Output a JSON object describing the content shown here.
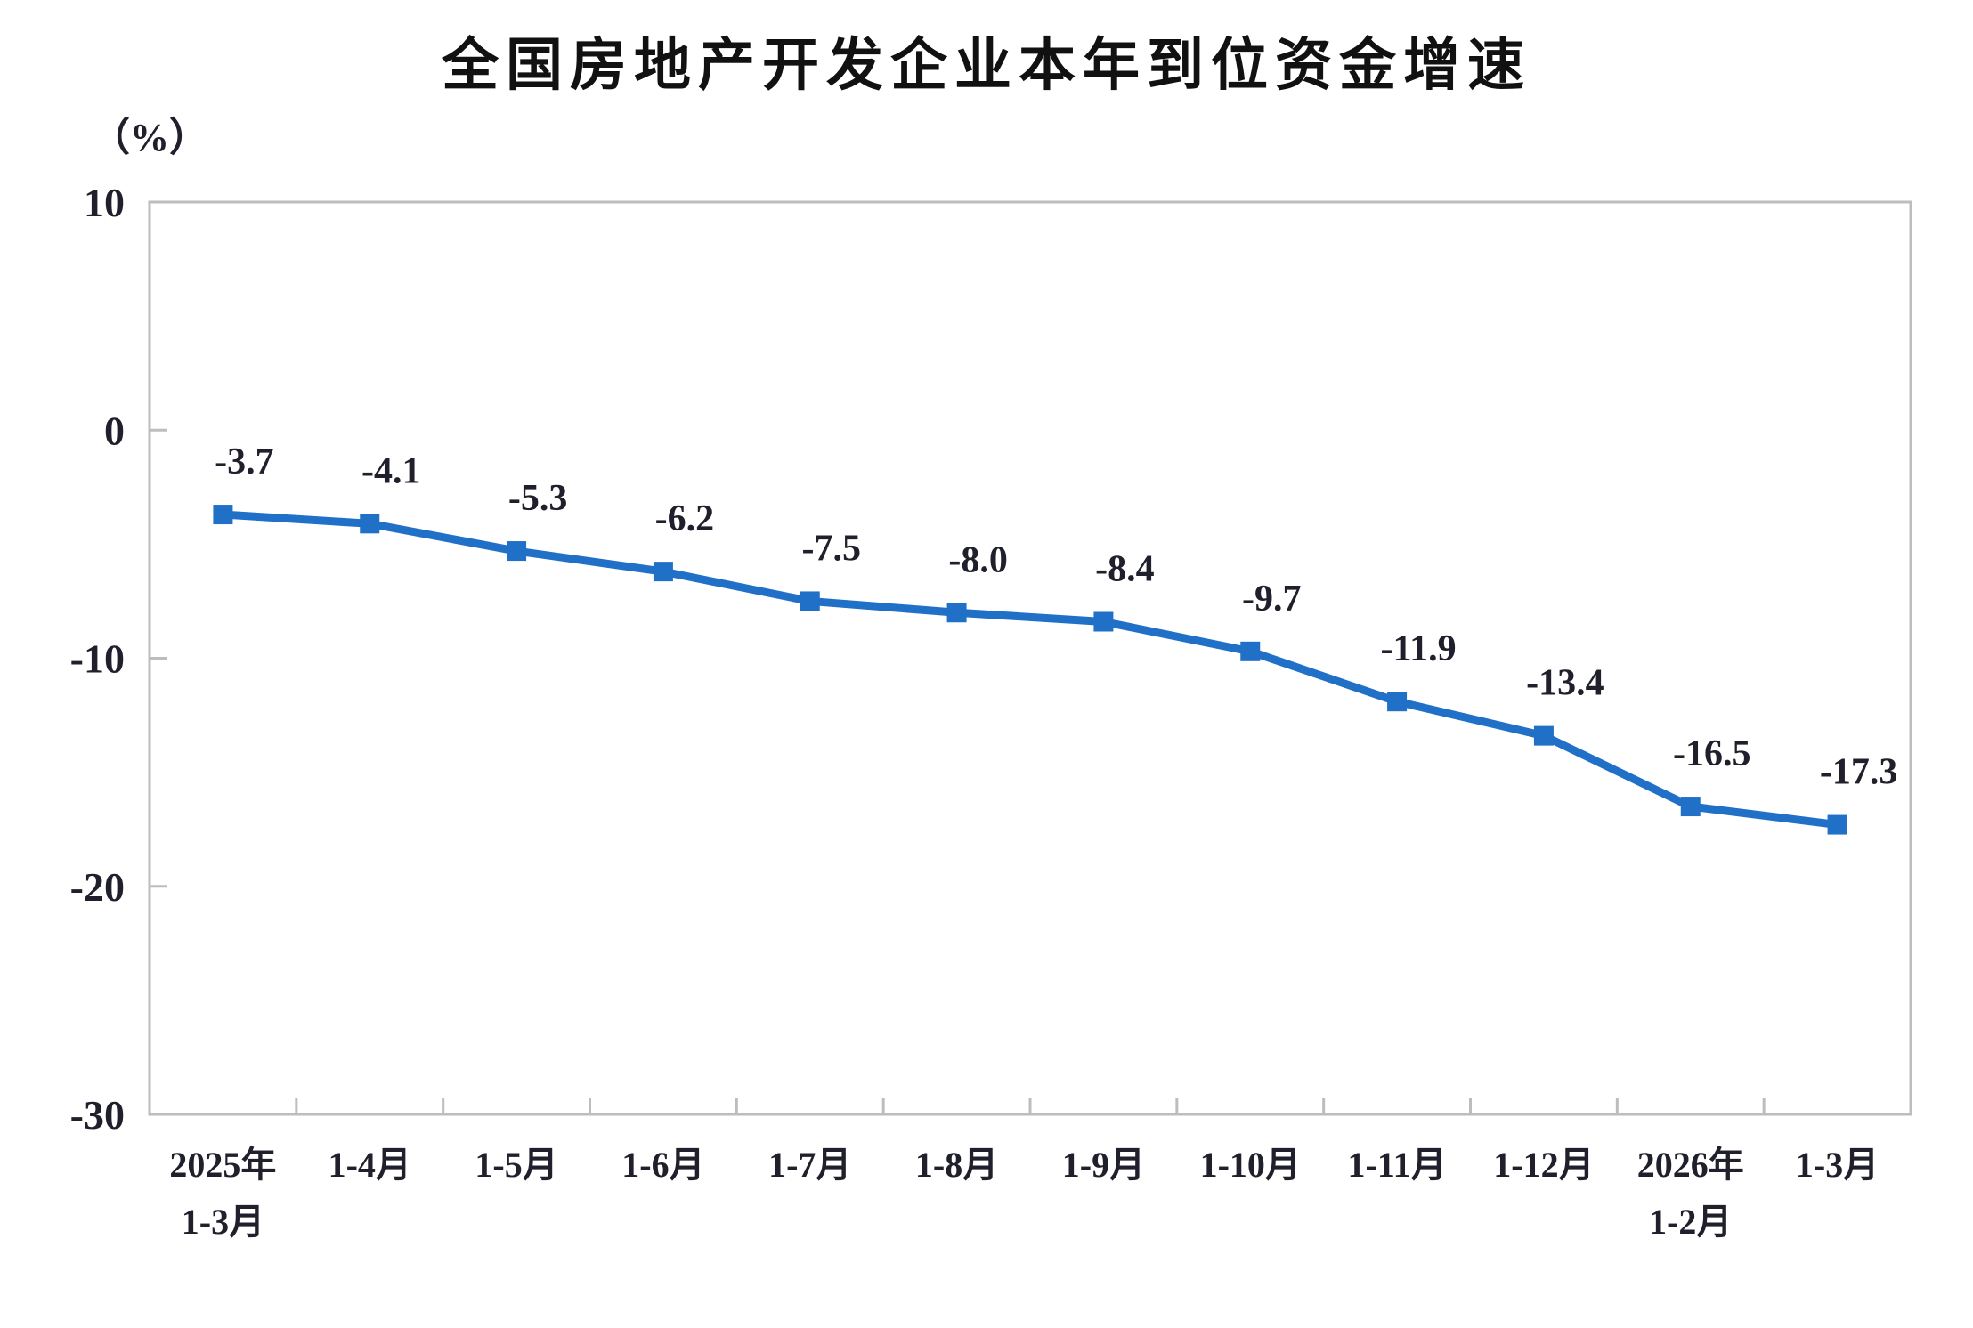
{
  "chart_data": {
    "type": "line",
    "title": "全国房地产开发企业本年到位资金增速",
    "ylabel": "（%）",
    "xlabel": "",
    "categories": [
      "2025年\n1-3月",
      "1-4月",
      "1-5月",
      "1-6月",
      "1-7月",
      "1-8月",
      "1-9月",
      "1-10月",
      "1-11月",
      "1-12月",
      "2026年\n1-2月",
      "1-3月"
    ],
    "values": [
      -3.7,
      -4.1,
      -5.3,
      -6.2,
      -7.5,
      -8.0,
      -8.4,
      -9.7,
      -11.9,
      -13.4,
      -16.5,
      -17.3
    ],
    "data_labels": [
      "-3.7",
      "-4.1",
      "-5.3",
      "-6.2",
      "-7.5",
      "-8.0",
      "-8.4",
      "-9.7",
      "-11.9",
      "-13.4",
      "-16.5",
      "-17.3"
    ],
    "ylim": [
      -30,
      10
    ],
    "yticks": [
      10,
      0,
      -10,
      -20,
      -30
    ],
    "grid": false,
    "legend": "none",
    "marker": "square",
    "style": {
      "line_color": "#2170C8",
      "marker_color": "#2170C8",
      "frame_color": "#BDBDBD",
      "label_color": "#20202c",
      "title_color": "#111111",
      "background": "#FFFFFF"
    }
  }
}
